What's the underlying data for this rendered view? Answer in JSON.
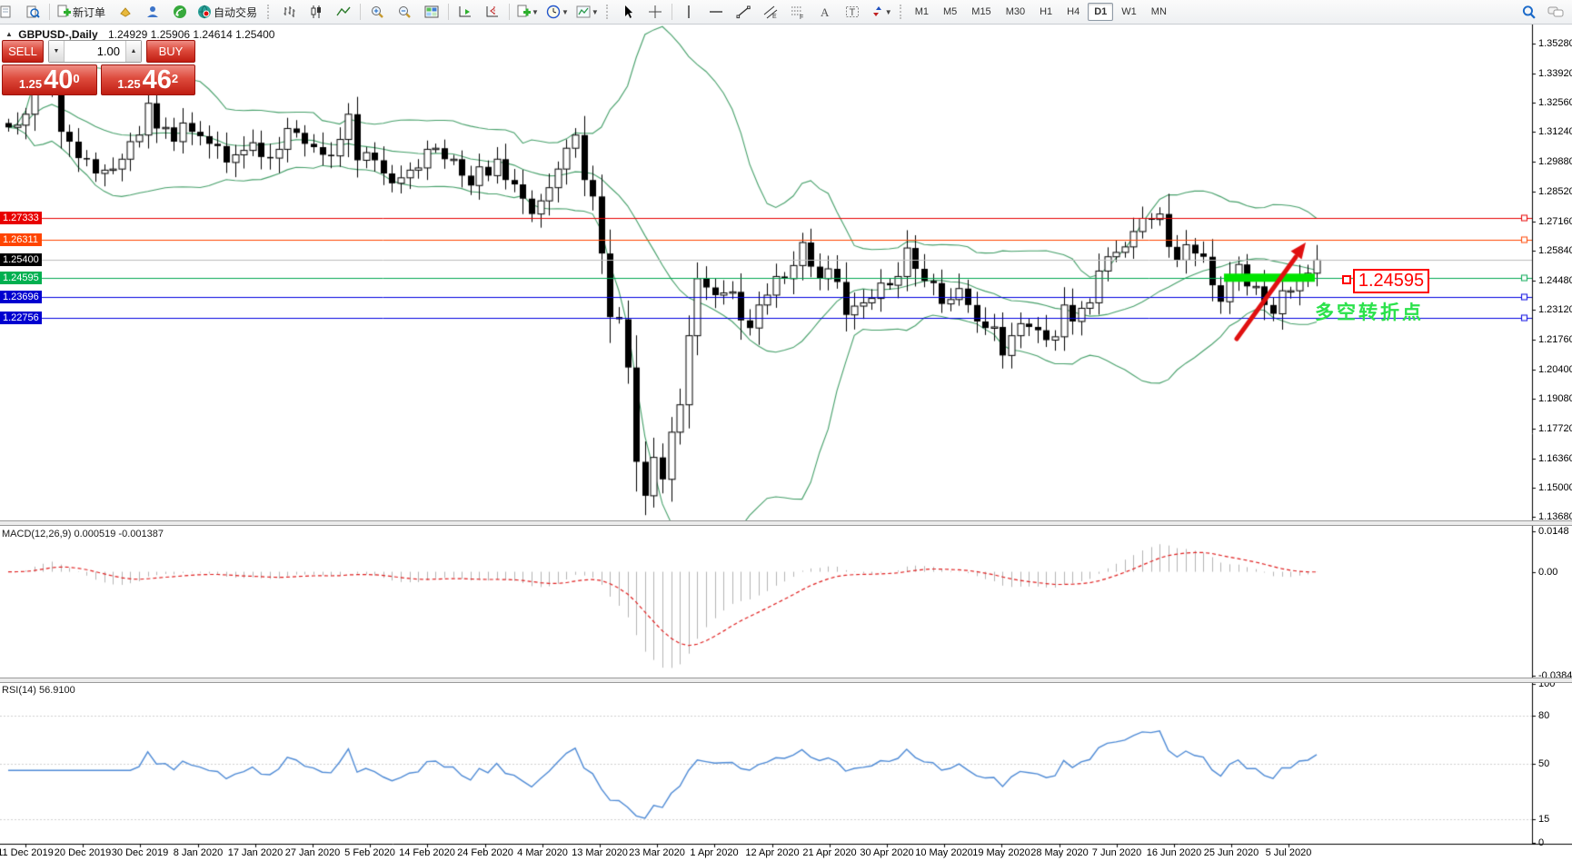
{
  "window": {
    "title_symbol": "GBPUSD-,Daily",
    "title_ohlc": "1.24929 1.25906 1.24614 1.25400"
  },
  "toolbar": {
    "new_order_label": "新订单",
    "autotrading_label": "自动交易",
    "timeframes": [
      "M1",
      "M5",
      "M15",
      "M30",
      "H1",
      "H4",
      "D1",
      "W1",
      "MN"
    ],
    "active_timeframe": "D1"
  },
  "one_click": {
    "sell_label": "SELL",
    "buy_label": "BUY",
    "volume": "1.00",
    "sell_price_prefix": "1.25",
    "sell_price_main": "40",
    "sell_price_sup": "0",
    "buy_price_prefix": "1.25",
    "buy_price_main": "46",
    "buy_price_sup": "2"
  },
  "chart_data": {
    "type": "candlestick",
    "symbol": "GBPUSD-",
    "timeframe": "Daily",
    "grid": false,
    "legend_position": "none",
    "y_range": [
      1.1361,
      1.361
    ],
    "y_axis_ticks": [
      1.3528,
      1.3392,
      1.3256,
      1.3124,
      1.2988,
      1.2852,
      1.2716,
      1.2584,
      1.2448,
      1.2312,
      1.2176,
      1.204,
      1.1908,
      1.1772,
      1.1636,
      1.15,
      1.1368
    ],
    "x_labels": [
      "11 Dec 2019",
      "20 Dec 2019",
      "30 Dec 2019",
      "8 Jan 2020",
      "17 Jan 2020",
      "27 Jan 2020",
      "5 Feb 2020",
      "14 Feb 2020",
      "24 Feb 2020",
      "4 Mar 2020",
      "13 Mar 2020",
      "23 Mar 2020",
      "1 Apr 2020",
      "12 Apr 2020",
      "21 Apr 2020",
      "30 Apr 2020",
      "10 May 2020",
      "19 May 2020",
      "28 May 2020",
      "7 Jun 2020",
      "16 Jun 2020",
      "25 Jun 2020",
      "5 Jul 2020"
    ],
    "closes": [
      1.3145,
      1.3155,
      1.3205,
      1.333,
      1.3335,
      1.333,
      1.3125,
      1.308,
      1.3005,
      1.3,
      1.2935,
      1.295,
      1.2955,
      1.3,
      1.308,
      1.311,
      1.3255,
      1.314,
      1.3145,
      1.308,
      1.3165,
      1.3125,
      1.3105,
      1.307,
      1.306,
      1.2985,
      1.302,
      1.304,
      1.3075,
      1.301,
      1.3005,
      1.3045,
      1.314,
      1.312,
      1.307,
      1.3055,
      1.302,
      1.3015,
      1.309,
      1.3205,
      1.2995,
      1.303,
      1.2995,
      1.2935,
      1.289,
      1.2915,
      1.295,
      1.296,
      1.3045,
      1.305,
      1.3,
      1.3,
      1.2925,
      1.288,
      1.2965,
      1.2925,
      1.3,
      1.2905,
      1.2885,
      1.282,
      1.275,
      1.281,
      1.287,
      1.2955,
      1.305,
      1.311,
      1.2905,
      1.283,
      1.257,
      1.228,
      1.227,
      1.205,
      1.162,
      1.1465,
      1.164,
      1.154,
      1.1755,
      1.188,
      1.2195,
      1.2455,
      1.2415,
      1.238,
      1.239,
      1.2395,
      1.2265,
      1.223,
      1.2335,
      1.238,
      1.2465,
      1.2455,
      1.2515,
      1.262,
      1.251,
      1.2455,
      1.25,
      1.244,
      1.229,
      1.233,
      1.2345,
      1.2365,
      1.2435,
      1.2425,
      1.2465,
      1.2595,
      1.25,
      1.2445,
      1.2435,
      1.234,
      1.236,
      1.241,
      1.2335,
      1.226,
      1.223,
      1.2235,
      1.2105,
      1.2195,
      1.225,
      1.2235,
      1.222,
      1.2175,
      1.219,
      1.2335,
      1.226,
      1.232,
      1.2345,
      1.249,
      1.2555,
      1.2575,
      1.26,
      1.267,
      1.273,
      1.2725,
      1.275,
      1.26,
      1.254,
      1.261,
      1.257,
      1.2555,
      1.2425,
      1.235,
      1.247,
      1.252,
      1.242,
      1.242,
      1.2335,
      1.2295,
      1.24,
      1.24,
      1.247,
      1.248,
      1.254
    ],
    "horizontal_lines": [
      {
        "price": 1.27333,
        "color": "#e80000",
        "badge": "1.27333",
        "badge_bg": "#e80000"
      },
      {
        "price": 1.26311,
        "color": "#ff4500",
        "badge": "1.26311",
        "badge_bg": "#ff4500"
      },
      {
        "price": 1.254,
        "color": "#bdbdbd",
        "badge": "1.25400",
        "badge_bg": "#000000"
      },
      {
        "price": 1.24595,
        "color": "#00a651",
        "badge": "1.24595",
        "badge_bg": "#00b050"
      },
      {
        "price": 1.23696,
        "color": "#0000e0",
        "badge": "1.23696",
        "badge_bg": "#0000d0"
      },
      {
        "price": 1.22756,
        "color": "#0000e0",
        "badge": "1.22756",
        "badge_bg": "#0000d0"
      }
    ],
    "indicators": {
      "bollinger": {
        "period": 20,
        "deviation": 2,
        "color": "#46a06a"
      },
      "macd": {
        "label": "MACD(12,26,9) 0.000519 -0.001387",
        "params": "12,26,9",
        "ticks": [
          {
            "text": "0.0148",
            "value": 0.0148
          },
          {
            "text": "0.00",
            "value": 0
          },
          {
            "text": "-0.038415",
            "value": -0.038415
          }
        ],
        "range": [
          -0.0384,
          0.0163
        ],
        "hist_color": "#b4b4b4",
        "signal_color": "#e02020"
      },
      "rsi": {
        "label": "RSI(14) 56.9100",
        "period": 14,
        "ticks": [
          {
            "text": "100",
            "value": 100
          },
          {
            "text": "80",
            "value": 80
          },
          {
            "text": "50",
            "value": 50
          },
          {
            "text": "15",
            "value": 15
          },
          {
            "text": "0",
            "value": 0
          }
        ],
        "levels": [
          80,
          50,
          15
        ],
        "range": [
          0,
          100
        ],
        "color": "#4f8bd6"
      }
    },
    "annotations": {
      "support_bar": {
        "price": 1.24595,
        "color": "#00e400"
      },
      "price_callout": {
        "text": "1.24595",
        "color": "#ff0000"
      },
      "cn_note": {
        "text": "多空转折点",
        "color": "#2be24b"
      },
      "trend_arrow": {
        "color": "#e01010",
        "direction": "up"
      }
    }
  }
}
